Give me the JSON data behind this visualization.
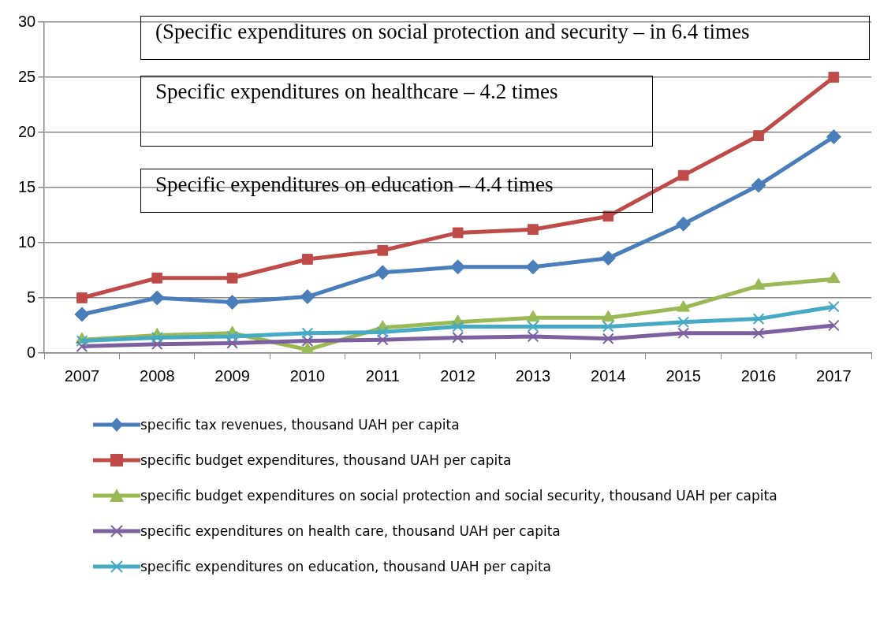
{
  "chart_data": {
    "type": "line",
    "categories": [
      "2007",
      "2008",
      "2009",
      "2010",
      "2011",
      "2012",
      "2013",
      "2014",
      "2015",
      "2016",
      "2017"
    ],
    "series": [
      {
        "name": "specific tax revenues, thousand UAH per capita",
        "color": "#4a7ebb",
        "marker": "diamond",
        "values": [
          3.5,
          5.0,
          4.6,
          5.1,
          7.3,
          7.8,
          7.8,
          8.6,
          11.7,
          15.2,
          19.6
        ]
      },
      {
        "name": "specific budget expenditures, thousand UAH per capita",
        "color": "#be4b48",
        "marker": "square",
        "values": [
          5.0,
          6.8,
          6.8,
          8.5,
          9.3,
          10.9,
          11.2,
          12.4,
          16.1,
          19.7,
          25.0
        ]
      },
      {
        "name": "specific budget expenditures on social protection and social security, thousand UAH per capita",
        "color": "#98b954",
        "marker": "triangle",
        "values": [
          1.2,
          1.6,
          1.8,
          0.3,
          2.3,
          2.8,
          3.2,
          3.2,
          4.1,
          6.1,
          6.7
        ]
      },
      {
        "name": "specific expenditures on health care, thousand UAH per capita",
        "color": "#7d60a0",
        "marker": "cross",
        "values": [
          0.6,
          0.8,
          0.9,
          1.1,
          1.2,
          1.4,
          1.5,
          1.3,
          1.8,
          1.8,
          2.5
        ]
      },
      {
        "name": "specific expenditures on education, thousand UAH per capita",
        "color": "#46aac5",
        "marker": "cross",
        "values": [
          1.1,
          1.4,
          1.5,
          1.8,
          1.9,
          2.4,
          2.4,
          2.4,
          2.8,
          3.1,
          4.2
        ]
      }
    ],
    "ylim": [
      0,
      30
    ],
    "yticks": [
      0,
      5,
      10,
      15,
      20,
      25,
      30
    ],
    "grid": "y",
    "legend": "bottom",
    "annotations": [
      "(Specific expenditures on social protection and security – in 6.4 times",
      "Specific expenditures on healthcare – 4.2 times",
      "Specific expenditures on education – 4.4 times"
    ]
  }
}
